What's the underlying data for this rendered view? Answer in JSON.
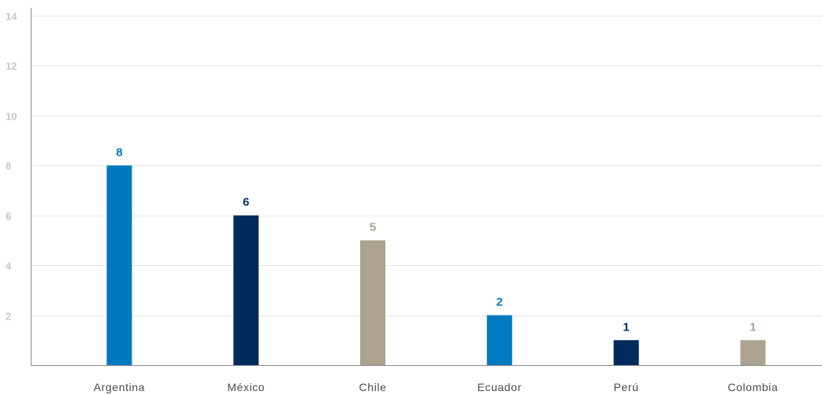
{
  "chart_data": {
    "type": "bar",
    "title": "",
    "xlabel": "",
    "ylabel": "",
    "categories": [
      "Argentina",
      "México",
      "Chile",
      "Ecuador",
      "Perú",
      "Colombia"
    ],
    "values": [
      8,
      6,
      5,
      2,
      1,
      1
    ],
    "value_labels": [
      "8",
      "6",
      "5",
      "2",
      "1",
      "1"
    ],
    "colors": [
      "#0079c1",
      "#002b5c",
      "#aba28f",
      "#0079c1",
      "#002b5c",
      "#aba28f"
    ],
    "ylim": [
      0,
      14
    ],
    "yticks": [
      2,
      4,
      6,
      8,
      10,
      12,
      14
    ],
    "ytick_labels": [
      "2",
      "4",
      "6",
      "8",
      "10",
      "12",
      "14"
    ],
    "grid": true,
    "legend": "none"
  }
}
